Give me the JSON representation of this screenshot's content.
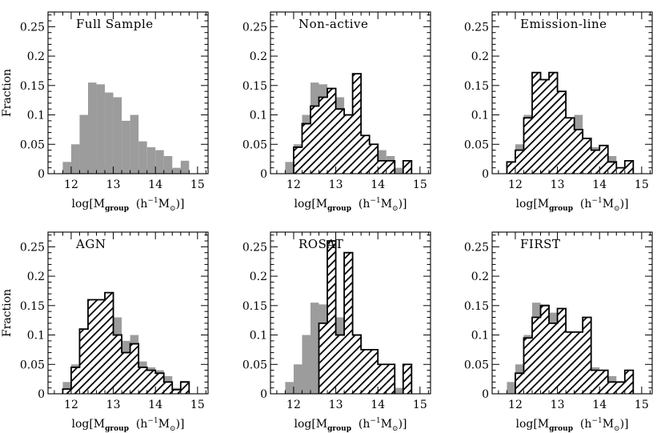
{
  "figure": {
    "xlabel": {
      "prefix": "log[M",
      "sub": "group",
      "unit_open": "(h",
      "sup": "−1",
      "unit_m": "M",
      "sun": "⊙",
      "close": ")]"
    }
  },
  "chart_data": [
    {
      "type": "bar",
      "title": "Full Sample",
      "ylabel": "Fraction",
      "xlim": [
        11.45,
        15.25
      ],
      "ylim": [
        0,
        0.275
      ],
      "xticks": [
        12,
        13,
        14,
        15
      ],
      "yticks": [
        0,
        0.05,
        0.1,
        0.15,
        0.2,
        0.25
      ],
      "ytick_labels": [
        "0",
        "0.05",
        "0.1",
        "0.15",
        "0.2",
        "0.25"
      ],
      "bin_edges": [
        11.8,
        12.0,
        12.2,
        12.4,
        12.6,
        12.8,
        13.0,
        13.2,
        13.4,
        13.6,
        13.8,
        14.0,
        14.2,
        14.4,
        14.6,
        14.8
      ],
      "series": [
        {
          "values": [
            0.02,
            0.05,
            0.1,
            0.155,
            0.152,
            0.138,
            0.13,
            0.09,
            0.1,
            0.055,
            0.045,
            0.04,
            0.03,
            0.01,
            0.022
          ],
          "style": "gray"
        }
      ]
    },
    {
      "type": "bar",
      "title": "Non-active",
      "ylabel": "",
      "xlim": [
        11.45,
        15.25
      ],
      "ylim": [
        0,
        0.275
      ],
      "xticks": [
        12,
        13,
        14,
        15
      ],
      "yticks": [
        0,
        0.05,
        0.1,
        0.15,
        0.2,
        0.25
      ],
      "ytick_labels": [
        "0",
        "0.05",
        "0.1",
        "0.15",
        "0.2",
        "0.25"
      ],
      "bin_edges": [
        11.8,
        12.0,
        12.2,
        12.4,
        12.6,
        12.8,
        13.0,
        13.2,
        13.4,
        13.6,
        13.8,
        14.0,
        14.2,
        14.4,
        14.6,
        14.8
      ],
      "series": [
        {
          "values": [
            0.02,
            0.05,
            0.1,
            0.155,
            0.152,
            0.138,
            0.13,
            0.09,
            0.1,
            0.055,
            0.045,
            0.04,
            0.03,
            0.01,
            0.022
          ],
          "style": "gray"
        },
        {
          "values": [
            0,
            0.045,
            0.085,
            0.115,
            0.13,
            0.145,
            0.11,
            0.1,
            0.17,
            0.065,
            0.05,
            0.022,
            0.022,
            0,
            0.022
          ],
          "style": "hatched"
        }
      ]
    },
    {
      "type": "bar",
      "title": "Emission-line",
      "ylabel": "",
      "xlim": [
        11.45,
        15.25
      ],
      "ylim": [
        0,
        0.275
      ],
      "xticks": [
        12,
        13,
        14,
        15
      ],
      "yticks": [
        0,
        0.05,
        0.1,
        0.15,
        0.2,
        0.25
      ],
      "ytick_labels": [
        "0",
        "0.05",
        "0.1",
        "0.15",
        "0.2",
        "0.25"
      ],
      "bin_edges": [
        11.8,
        12.0,
        12.2,
        12.4,
        12.6,
        12.8,
        13.0,
        13.2,
        13.4,
        13.6,
        13.8,
        14.0,
        14.2,
        14.4,
        14.6,
        14.8
      ],
      "series": [
        {
          "values": [
            0.02,
            0.05,
            0.1,
            0.155,
            0.152,
            0.138,
            0.13,
            0.09,
            0.1,
            0.055,
            0.045,
            0.04,
            0.03,
            0.01,
            0.022
          ],
          "style": "gray"
        },
        {
          "values": [
            0.02,
            0.04,
            0.095,
            0.172,
            0.16,
            0.172,
            0.14,
            0.095,
            0.075,
            0.06,
            0.04,
            0.048,
            0.02,
            0.01,
            0.022
          ],
          "style": "hatched"
        }
      ]
    },
    {
      "type": "bar",
      "title": "AGN",
      "ylabel": "Fraction",
      "xlim": [
        11.45,
        15.25
      ],
      "ylim": [
        0,
        0.275
      ],
      "xticks": [
        12,
        13,
        14,
        15
      ],
      "yticks": [
        0,
        0.05,
        0.1,
        0.15,
        0.2,
        0.25
      ],
      "ytick_labels": [
        "0",
        "0.05",
        "0.1",
        "0.15",
        "0.2",
        "0.25"
      ],
      "bin_edges": [
        11.8,
        12.0,
        12.2,
        12.4,
        12.6,
        12.8,
        13.0,
        13.2,
        13.4,
        13.6,
        13.8,
        14.0,
        14.2,
        14.4,
        14.6,
        14.8
      ],
      "series": [
        {
          "values": [
            0.02,
            0.05,
            0.1,
            0.155,
            0.152,
            0.138,
            0.13,
            0.09,
            0.1,
            0.055,
            0.045,
            0.04,
            0.03,
            0.01,
            0.022
          ],
          "style": "gray"
        },
        {
          "values": [
            0.008,
            0.045,
            0.11,
            0.16,
            0.16,
            0.172,
            0.1,
            0.07,
            0.085,
            0.045,
            0.04,
            0.035,
            0.02,
            0.007,
            0.02
          ],
          "style": "hatched"
        }
      ]
    },
    {
      "type": "bar",
      "title": "ROSAT",
      "ylabel": "",
      "xlim": [
        11.45,
        15.25
      ],
      "ylim": [
        0,
        0.275
      ],
      "xticks": [
        12,
        13,
        14,
        15
      ],
      "yticks": [
        0,
        0.05,
        0.1,
        0.15,
        0.2,
        0.25
      ],
      "ytick_labels": [
        "0",
        "0.05",
        "0.1",
        "0.15",
        "0.2",
        "0.25"
      ],
      "bin_edges": [
        11.8,
        12.0,
        12.2,
        12.4,
        12.6,
        12.8,
        13.0,
        13.2,
        13.4,
        13.6,
        13.8,
        14.0,
        14.2,
        14.4,
        14.6,
        14.8
      ],
      "series": [
        {
          "values": [
            0.02,
            0.05,
            0.1,
            0.155,
            0.152,
            0.138,
            0.13,
            0.09,
            0.1,
            0.055,
            0.045,
            0.04,
            0.03,
            0.01,
            0.022
          ],
          "style": "gray"
        },
        {
          "values": [
            0,
            0,
            0,
            0,
            0.12,
            0.26,
            0.1,
            0.24,
            0.1,
            0.075,
            0.075,
            0.05,
            0.05,
            0,
            0.05
          ],
          "style": "hatched"
        }
      ]
    },
    {
      "type": "bar",
      "title": "FIRST",
      "ylabel": "",
      "xlim": [
        11.45,
        15.25
      ],
      "ylim": [
        0,
        0.275
      ],
      "xticks": [
        12,
        13,
        14,
        15
      ],
      "yticks": [
        0,
        0.05,
        0.1,
        0.15,
        0.2,
        0.25
      ],
      "ytick_labels": [
        "0",
        "0.05",
        "0.1",
        "0.15",
        "0.2",
        "0.25"
      ],
      "bin_edges": [
        11.8,
        12.0,
        12.2,
        12.4,
        12.6,
        12.8,
        13.0,
        13.2,
        13.4,
        13.6,
        13.8,
        14.0,
        14.2,
        14.4,
        14.6,
        14.8
      ],
      "series": [
        {
          "values": [
            0.02,
            0.05,
            0.1,
            0.155,
            0.152,
            0.138,
            0.13,
            0.09,
            0.1,
            0.055,
            0.045,
            0.04,
            0.03,
            0.01,
            0.022
          ],
          "style": "gray"
        },
        {
          "values": [
            0,
            0.035,
            0.095,
            0.13,
            0.15,
            0.12,
            0.145,
            0.105,
            0.105,
            0.13,
            0.04,
            0.04,
            0.02,
            0.02,
            0.04
          ],
          "style": "hatched"
        }
      ]
    }
  ]
}
